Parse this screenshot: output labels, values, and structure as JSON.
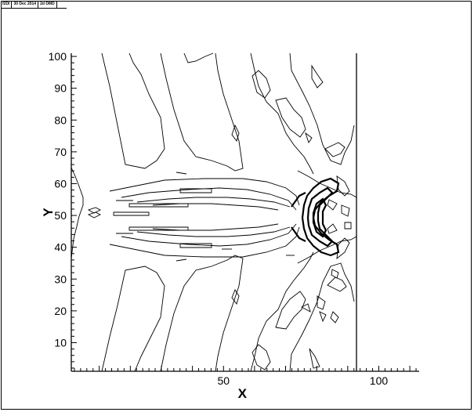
{
  "header": {
    "items": [
      "f2Dl",
      "30 Dec 2014",
      "2d DMD"
    ]
  },
  "chart_data": {
    "type": "contour",
    "xlabel": "X",
    "ylabel": "Y",
    "xlim": [
      1,
      113
    ],
    "ylim": [
      1,
      101
    ],
    "xticks": [
      50,
      100
    ],
    "yticks": [
      10,
      20,
      30,
      40,
      50,
      60,
      70,
      80,
      90,
      100
    ],
    "domain_right_x": 90,
    "grid": false,
    "line_color": "#000000",
    "bold_region": {
      "x": [
        70,
        82
      ],
      "y": [
        40,
        60
      ]
    }
  }
}
